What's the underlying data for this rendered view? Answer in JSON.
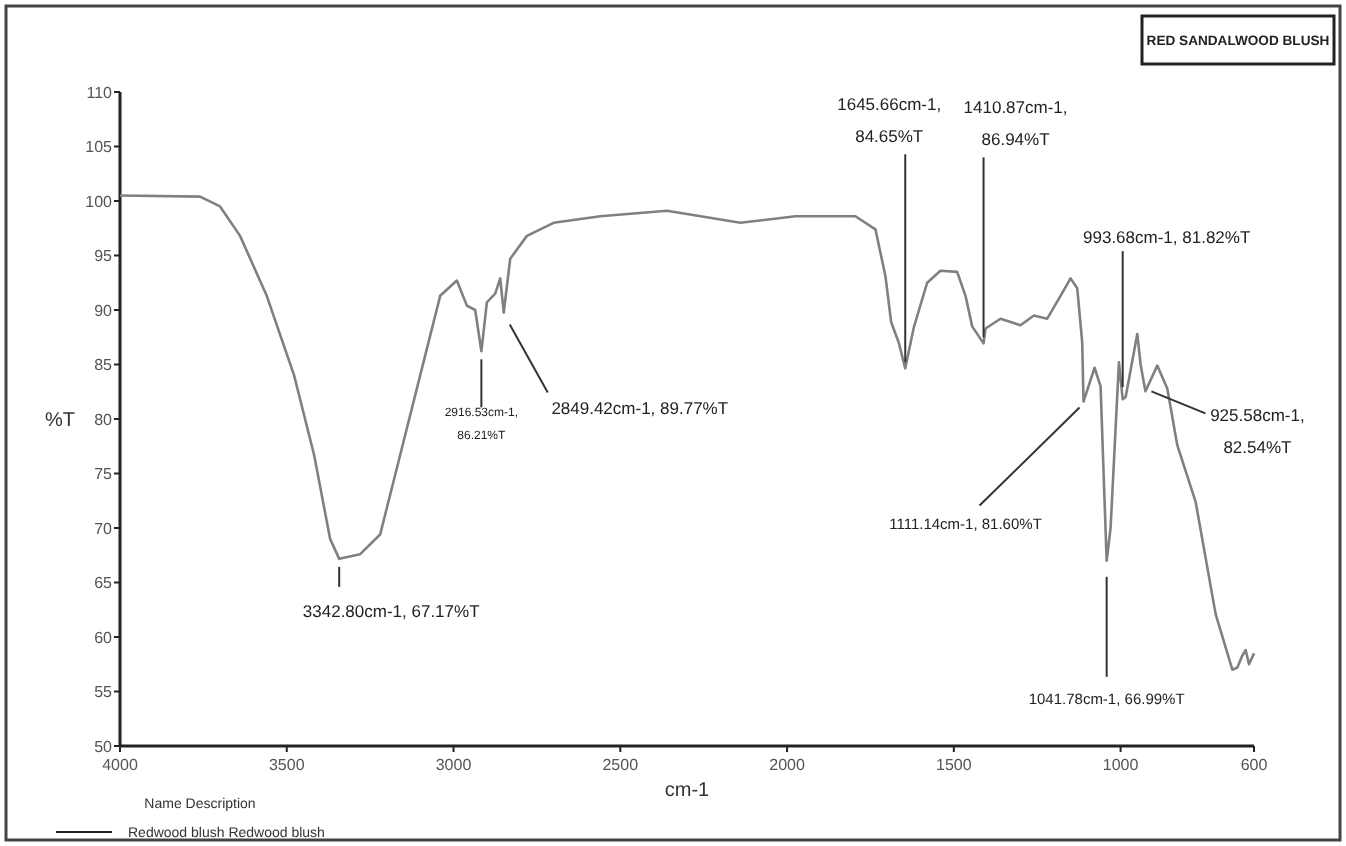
{
  "chart_data": {
    "type": "line",
    "title": "RED SANDALWOOD BLUSH",
    "xlabel": "cm-1",
    "ylabel": "%T",
    "legend_title": "Name Description",
    "legend": "bottom left",
    "grid": false,
    "marker": "none",
    "line_style": "solid",
    "xlim": [
      4000,
      600
    ],
    "ylim": [
      50,
      110
    ],
    "xticks": [
      4000,
      3500,
      3000,
      2500,
      2000,
      1500,
      1000,
      600
    ],
    "yticks": [
      50,
      55,
      60,
      65,
      70,
      75,
      80,
      85,
      90,
      95,
      100,
      105,
      110
    ],
    "series": [
      {
        "name": "Redwood blush Redwood blush",
        "color": "#808080",
        "x": [
          4000,
          3760,
          3700,
          3640,
          3560,
          3478,
          3418,
          3370,
          3342.8,
          3280,
          3220,
          3160,
          3100,
          3040,
          2990,
          2960,
          2935,
          2916.53,
          2900,
          2875,
          2860,
          2849.42,
          2830,
          2780,
          2700,
          2560,
          2360,
          2140,
          1975,
          1795,
          1735,
          1705,
          1688,
          1665,
          1645.66,
          1620,
          1580,
          1540,
          1490,
          1465,
          1445,
          1410.87,
          1405,
          1360,
          1300,
          1260,
          1220,
          1180,
          1150,
          1130,
          1115,
          1111.14,
          1078,
          1060,
          1041.78,
          1030,
          1005,
          993.68,
          985,
          950,
          940,
          925.58,
          890,
          860,
          830,
          775,
          715,
          665,
          650,
          635,
          625,
          615,
          600
        ],
        "values": [
          100.5,
          100.4,
          99.5,
          96.8,
          91.3,
          84,
          76.7,
          69,
          67.17,
          67.6,
          69.4,
          76.7,
          84,
          91.3,
          92.7,
          90.4,
          90,
          86.21,
          90.7,
          91.5,
          92.9,
          89.77,
          94.7,
          96.8,
          98,
          98.6,
          99.1,
          98,
          98.6,
          98.6,
          97.4,
          93.1,
          88.9,
          87,
          84.65,
          88.4,
          92.5,
          93.6,
          93.5,
          91.3,
          88.5,
          86.94,
          88.3,
          89.2,
          88.6,
          89.5,
          89.2,
          91.3,
          92.9,
          92,
          87,
          81.6,
          84.7,
          83,
          66.99,
          70,
          85.2,
          81.82,
          82,
          87.8,
          85,
          82.54,
          84.9,
          82.8,
          77.6,
          72.4,
          62.1,
          57,
          57.2,
          58.3,
          58.8,
          57.5,
          58.5
        ]
      }
    ],
    "annotations": [
      {
        "text": "3342.80cm-1, 67.17%T",
        "x": 3342.8,
        "y": 67.17
      },
      {
        "text": "2916.53cm-1, 86.21%T",
        "x": 2916.53,
        "y": 86.21
      },
      {
        "text": "2849.42cm-1, 89.77%T",
        "x": 2849.42,
        "y": 89.77
      },
      {
        "text": "1645.66cm-1, 84.65%T",
        "x": 1645.66,
        "y": 84.65
      },
      {
        "text": "1410.87cm-1, 86.94%T",
        "x": 1410.87,
        "y": 86.94
      },
      {
        "text": "993.68cm-1, 81.82%T",
        "x": 993.68,
        "y": 81.82
      },
      {
        "text": "1111.14cm-1, 81.60%T",
        "x": 1111.14,
        "y": 81.6
      },
      {
        "text": "925.58cm-1, 82.54%T",
        "x": 925.58,
        "y": 82.54
      },
      {
        "text": "1041.78cm-1, 66.99%T",
        "x": 1041.78,
        "y": 66.99
      }
    ]
  }
}
